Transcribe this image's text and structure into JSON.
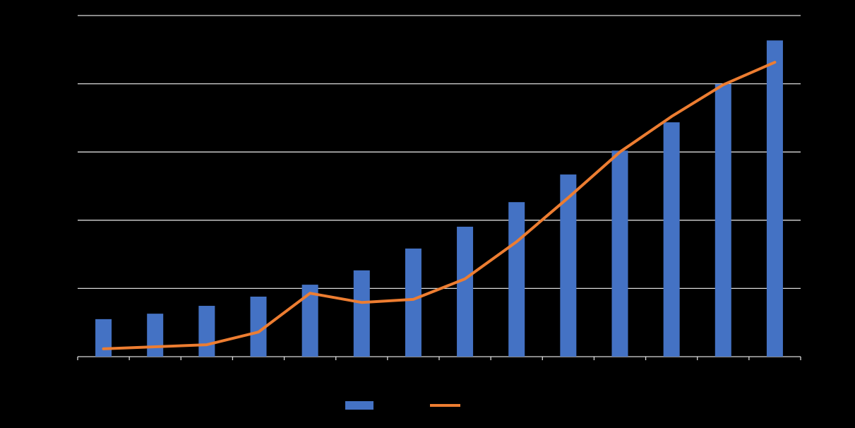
{
  "chart_data": {
    "type": "bar",
    "categories": [
      null,
      null,
      null,
      null,
      null,
      null,
      null,
      null,
      null,
      null,
      null,
      null,
      null,
      null
    ],
    "series": [
      {
        "type": "bar",
        "color": "#4472c4",
        "values": [
          11.0,
          12.6,
          14.9,
          17.6,
          21.1,
          25.3,
          31.7,
          38.1,
          45.3,
          53.4,
          60.4,
          68.7,
          79.9,
          92.7
        ]
      },
      {
        "type": "line",
        "color": "#ed7d31",
        "values": [
          2.3,
          2.9,
          3.5,
          7.2,
          18.6,
          15.9,
          16.8,
          22.8,
          33.7,
          46.6,
          60.0,
          70.4,
          79.7,
          86.3
        ]
      }
    ],
    "ylim": [
      0,
      100
    ],
    "yticks": [
      0,
      20,
      40,
      60,
      80,
      100
    ],
    "grid": true,
    "legend": "bottom"
  }
}
